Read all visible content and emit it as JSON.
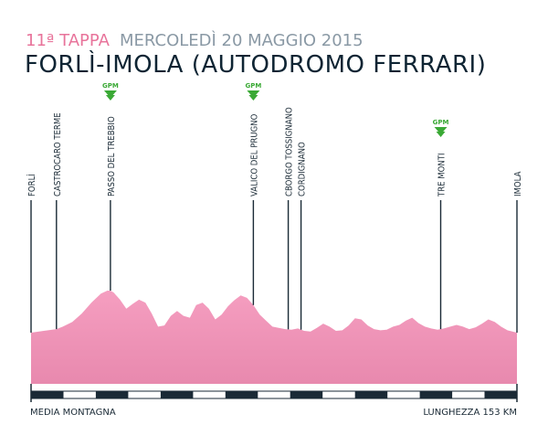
{
  "header": {
    "stage": "11ª TAPPA",
    "date": "MERCOLEDÌ 20 MAGGIO 2015",
    "route": "FORLÌ-IMOLA (AUTODROMO FERRARI)"
  },
  "footer": {
    "difficulty": "MEDIA MONTAGNA",
    "length": "LUNGHEZZA 153 KM"
  },
  "colors": {
    "profile_fill": "#f59ec0",
    "profile_fill_dark": "#e889ae",
    "gpm_green": "#3aa935",
    "text_dark": "#0e2433",
    "stage_pink": "#e8749b",
    "date_gray": "#8a99a5"
  },
  "chart_data": {
    "type": "area",
    "title": "",
    "xlabel": "",
    "ylabel": "",
    "x_total_km": 153,
    "profile": {
      "x_km": [
        0,
        4,
        8,
        10,
        13,
        16,
        19,
        22,
        24,
        25,
        26,
        28,
        30,
        32,
        34,
        36,
        38,
        40,
        42,
        44,
        46,
        48,
        50,
        52,
        54,
        56,
        58,
        60,
        62,
        64,
        66,
        68,
        70,
        72,
        74,
        75,
        76,
        78,
        80,
        82,
        84,
        86,
        88,
        90,
        92,
        94,
        96,
        98,
        100,
        102,
        104,
        106,
        108,
        110,
        112,
        114,
        116,
        118,
        120,
        122,
        124,
        126,
        128,
        130,
        132,
        134,
        136,
        138,
        140,
        142,
        144,
        146,
        148,
        150,
        153
      ],
      "elevation_rel": [
        0.3,
        0.33,
        0.36,
        0.4,
        0.48,
        0.62,
        0.8,
        0.95,
        1.0,
        1.0,
        0.97,
        0.85,
        0.7,
        0.78,
        0.85,
        0.8,
        0.62,
        0.4,
        0.42,
        0.58,
        0.66,
        0.58,
        0.55,
        0.76,
        0.8,
        0.7,
        0.52,
        0.6,
        0.74,
        0.84,
        0.92,
        0.88,
        0.76,
        0.6,
        0.5,
        0.45,
        0.4,
        0.38,
        0.36,
        0.35,
        0.37,
        0.33,
        0.32,
        0.38,
        0.45,
        0.4,
        0.33,
        0.34,
        0.42,
        0.54,
        0.52,
        0.42,
        0.36,
        0.34,
        0.35,
        0.4,
        0.43,
        0.5,
        0.55,
        0.46,
        0.4,
        0.37,
        0.35,
        0.37,
        0.4,
        0.43,
        0.4,
        0.36,
        0.39,
        0.45,
        0.52,
        0.48,
        0.4,
        0.34,
        0.3
      ]
    },
    "locations": [
      {
        "name": "FORLÌ",
        "km": 0,
        "gpm": false
      },
      {
        "name": "CASTROCARO TERME",
        "km": 8,
        "gpm": false
      },
      {
        "name": "PASSO DEL TREBBIO",
        "km": 25,
        "gpm": true
      },
      {
        "name": "VALICO DEL PRUGNO",
        "km": 70,
        "gpm": true
      },
      {
        "name": "CBORGO TOSSIGNANO",
        "km": 81,
        "gpm": false
      },
      {
        "name": "CORDIGNANO",
        "km": 85,
        "gpm": false
      },
      {
        "name": "TRE MONTI",
        "km": 129,
        "gpm": true
      },
      {
        "name": "IMOLA",
        "km": 153,
        "gpm": false
      }
    ],
    "gpm_label": "GPM"
  }
}
